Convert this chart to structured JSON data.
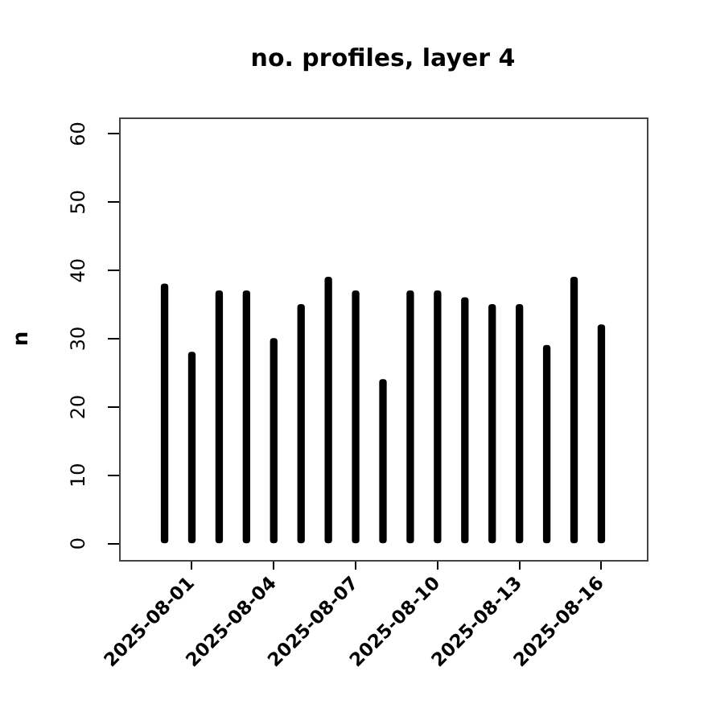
{
  "chart_data": {
    "type": "bar",
    "title": "no. profiles, layer 4",
    "ylabel": "n",
    "x": [
      "2025-07-31",
      "2025-08-01",
      "2025-08-02",
      "2025-08-03",
      "2025-08-04",
      "2025-08-05",
      "2025-08-06",
      "2025-08-07",
      "2025-08-08",
      "2025-08-09",
      "2025-08-10",
      "2025-08-11",
      "2025-08-12",
      "2025-08-13",
      "2025-08-14",
      "2025-08-15",
      "2025-08-16"
    ],
    "values": [
      38,
      28,
      37,
      37,
      30,
      35,
      39,
      37,
      24,
      37,
      37,
      36,
      35,
      35,
      29,
      39,
      32
    ],
    "color": "#000000",
    "xlim": [
      "2025-07-29T08:00",
      "2025-08-17T16:00"
    ],
    "xticks": [
      "2025-08-01",
      "2025-08-04",
      "2025-08-07",
      "2025-08-10",
      "2025-08-13",
      "2025-08-16"
    ],
    "ylim": [
      -2.4,
      62.4
    ],
    "yticks": [
      0,
      10,
      20,
      30,
      40,
      50,
      60
    ],
    "grid": false,
    "legend": false
  }
}
